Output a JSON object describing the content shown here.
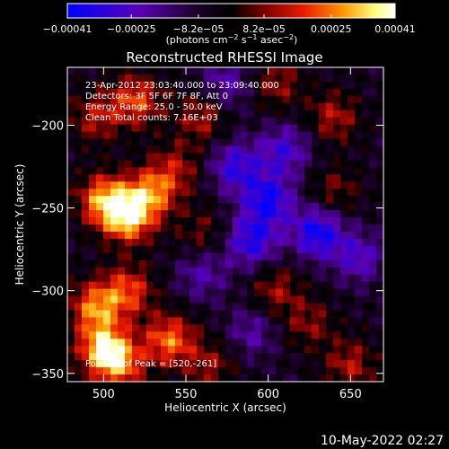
{
  "chart_data": {
    "type": "heatmap",
    "title": "Reconstructed RHESSI Image",
    "xlabel": "Heliocentric X (arcsec)",
    "ylabel": "Heliocentric Y (arcsec)",
    "xlim": [
      478,
      670
    ],
    "ylim": [
      -355,
      -165
    ],
    "x_ticks": [
      500,
      550,
      600,
      650
    ],
    "y_ticks": [
      -200,
      -250,
      -300,
      -350
    ],
    "x_tick_labels": [
      "500",
      "550",
      "600",
      "650"
    ],
    "y_tick_labels": [
      "−200",
      "−250",
      "−300",
      "−350"
    ],
    "colorbar": {
      "min": -0.00041,
      "max": 0.00041,
      "ticks": [
        -0.00041,
        -0.00025,
        -8.2e-05,
        8.2e-05,
        0.00025,
        0.00041
      ],
      "tick_labels": [
        "−0.00041",
        "−0.00025",
        "−8.2e−05",
        "8.2e−05",
        "0.00025",
        "0.00041"
      ],
      "units_main": "(photons cm",
      "units_exp1": "−2",
      "units_mid": " s",
      "units_exp2": "−1",
      "units_end": " asec",
      "units_exp3": "−2",
      "units_close": ")",
      "colors": [
        "#0000ff",
        "#5a00b4",
        "#1a0026",
        "#000000",
        "#7a0000",
        "#e81a00",
        "#ff9600",
        "#ffff80",
        "#ffffff"
      ]
    },
    "annotations": [
      "23-Apr-2012 23:03:40.000 to 23:09:40.000",
      "Detectors: 3F 5F 6F 7F 8F, Att 0",
      "Energy Range: 25.0 - 50.0 keV",
      "Clean     Total counts: 7.16E+03"
    ],
    "peak_label": "Position of Peak = [520,-261]",
    "peak": [
      520,
      -261
    ],
    "blobs": [
      {
        "x": 515,
        "y": -255,
        "value": 0.00041
      },
      {
        "x": 500,
        "y": -245,
        "value": 0.00032
      },
      {
        "x": 530,
        "y": -240,
        "value": 0.00028
      },
      {
        "x": 495,
        "y": -310,
        "value": 0.0003
      },
      {
        "x": 515,
        "y": -300,
        "value": 0.00025
      },
      {
        "x": 500,
        "y": -335,
        "value": 0.00036
      },
      {
        "x": 510,
        "y": -345,
        "value": 0.00026
      },
      {
        "x": 540,
        "y": -330,
        "value": 0.0003
      },
      {
        "x": 520,
        "y": -185,
        "value": 0.00026
      },
      {
        "x": 495,
        "y": -195,
        "value": 0.00018
      },
      {
        "x": 560,
        "y": -195,
        "value": 0.00018
      },
      {
        "x": 545,
        "y": -225,
        "value": 0.00015
      },
      {
        "x": 560,
        "y": -265,
        "value": 0.00012
      },
      {
        "x": 605,
        "y": -175,
        "value": 0.00016
      },
      {
        "x": 640,
        "y": -195,
        "value": 0.00018
      },
      {
        "x": 605,
        "y": -300,
        "value": 0.00016
      },
      {
        "x": 625,
        "y": -320,
        "value": 0.00014
      },
      {
        "x": 565,
        "y": -345,
        "value": 0.00015
      },
      {
        "x": 650,
        "y": -345,
        "value": 0.00018
      },
      {
        "x": 640,
        "y": -240,
        "value": 0.00013
      },
      {
        "x": 580,
        "y": -225,
        "value": -0.00025
      },
      {
        "x": 600,
        "y": -245,
        "value": -0.0003
      },
      {
        "x": 630,
        "y": -265,
        "value": -0.00032
      },
      {
        "x": 590,
        "y": -270,
        "value": -0.00028
      },
      {
        "x": 610,
        "y": -215,
        "value": -0.00022
      },
      {
        "x": 575,
        "y": -175,
        "value": -0.00018
      },
      {
        "x": 560,
        "y": -290,
        "value": -0.00016
      },
      {
        "x": 655,
        "y": -280,
        "value": -0.0002
      },
      {
        "x": 590,
        "y": -325,
        "value": -0.00015
      }
    ]
  },
  "footer": {
    "timestamp": "10-May-2022 02:27"
  }
}
